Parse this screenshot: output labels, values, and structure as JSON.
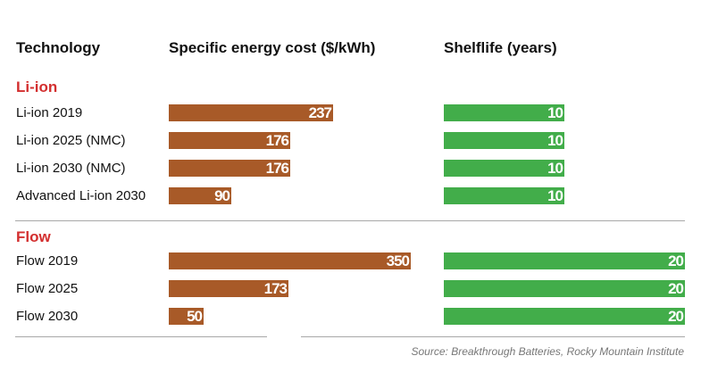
{
  "headers": {
    "technology": "Technology",
    "cost": "Specific energy cost ($/kWh)",
    "shelf": "Shelflife (years)"
  },
  "colors": {
    "cost_bar": "#a85a28",
    "shelf_bar": "#42ad4a",
    "group_title": "#d32f2f"
  },
  "source": "Source: Breakthrough Batteries, Rocky Mountain Institute",
  "chart_data": {
    "type": "bar",
    "orientation": "horizontal",
    "title": "",
    "groups": [
      {
        "name": "Li-ion",
        "rows": [
          {
            "label": "Li-ion 2019",
            "cost": 237,
            "shelf": 10
          },
          {
            "label": "Li-ion 2025 (NMC)",
            "cost": 176,
            "shelf": 10
          },
          {
            "label": "Li-ion 2030 (NMC)",
            "cost": 176,
            "shelf": 10
          },
          {
            "label": "Advanced Li-ion 2030",
            "cost": 90,
            "shelf": 10
          }
        ]
      },
      {
        "name": "Flow",
        "rows": [
          {
            "label": "Flow 2019",
            "cost": 350,
            "shelf": 20
          },
          {
            "label": "Flow 2025",
            "cost": 173,
            "shelf": 20
          },
          {
            "label": "Flow 2030",
            "cost": 50,
            "shelf": 20
          }
        ]
      }
    ],
    "series": [
      {
        "name": "Specific energy cost ($/kWh)",
        "key": "cost",
        "max": 350
      },
      {
        "name": "Shelflife (years)",
        "key": "shelf",
        "max": 20
      }
    ],
    "grid": false,
    "legend": "none"
  }
}
